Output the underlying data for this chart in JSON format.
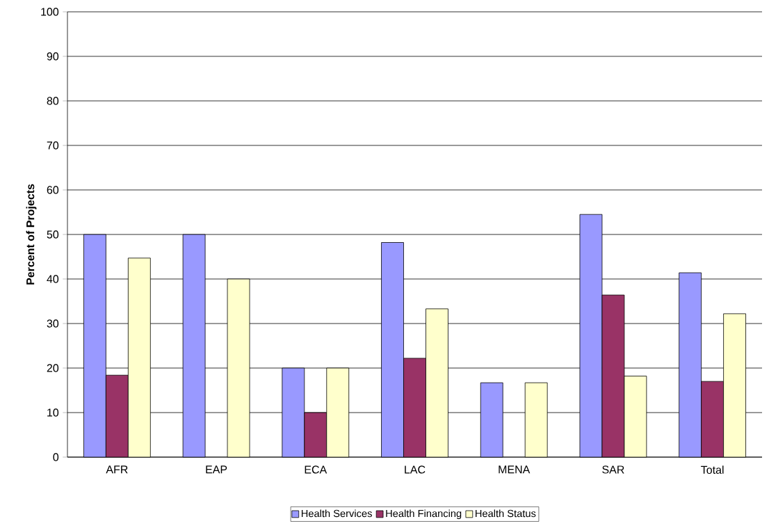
{
  "chart_data": {
    "type": "bar",
    "ylabel": "Percent of Projects",
    "categories": [
      "AFR",
      "EAP",
      "ECA",
      "LAC",
      "MENA",
      "SAR",
      "Total"
    ],
    "series": [
      {
        "name": "Health Services",
        "color": "#9999ff",
        "values": [
          50,
          50,
          20,
          48.2,
          16.7,
          54.5,
          41.4
        ]
      },
      {
        "name": "Health Financing",
        "color": "#993366",
        "values": [
          18.4,
          null,
          10,
          22.2,
          null,
          36.4,
          17
        ]
      },
      {
        "name": "Health Status",
        "color": "#ffffcc",
        "values": [
          44.7,
          40,
          20,
          33.3,
          16.7,
          18.2,
          32.2
        ]
      }
    ],
    "ylim": [
      0,
      100
    ],
    "yticks": [
      0,
      10,
      20,
      30,
      40,
      50,
      60,
      70,
      80,
      90,
      100
    ],
    "grid": "y",
    "legend": "bottom"
  }
}
